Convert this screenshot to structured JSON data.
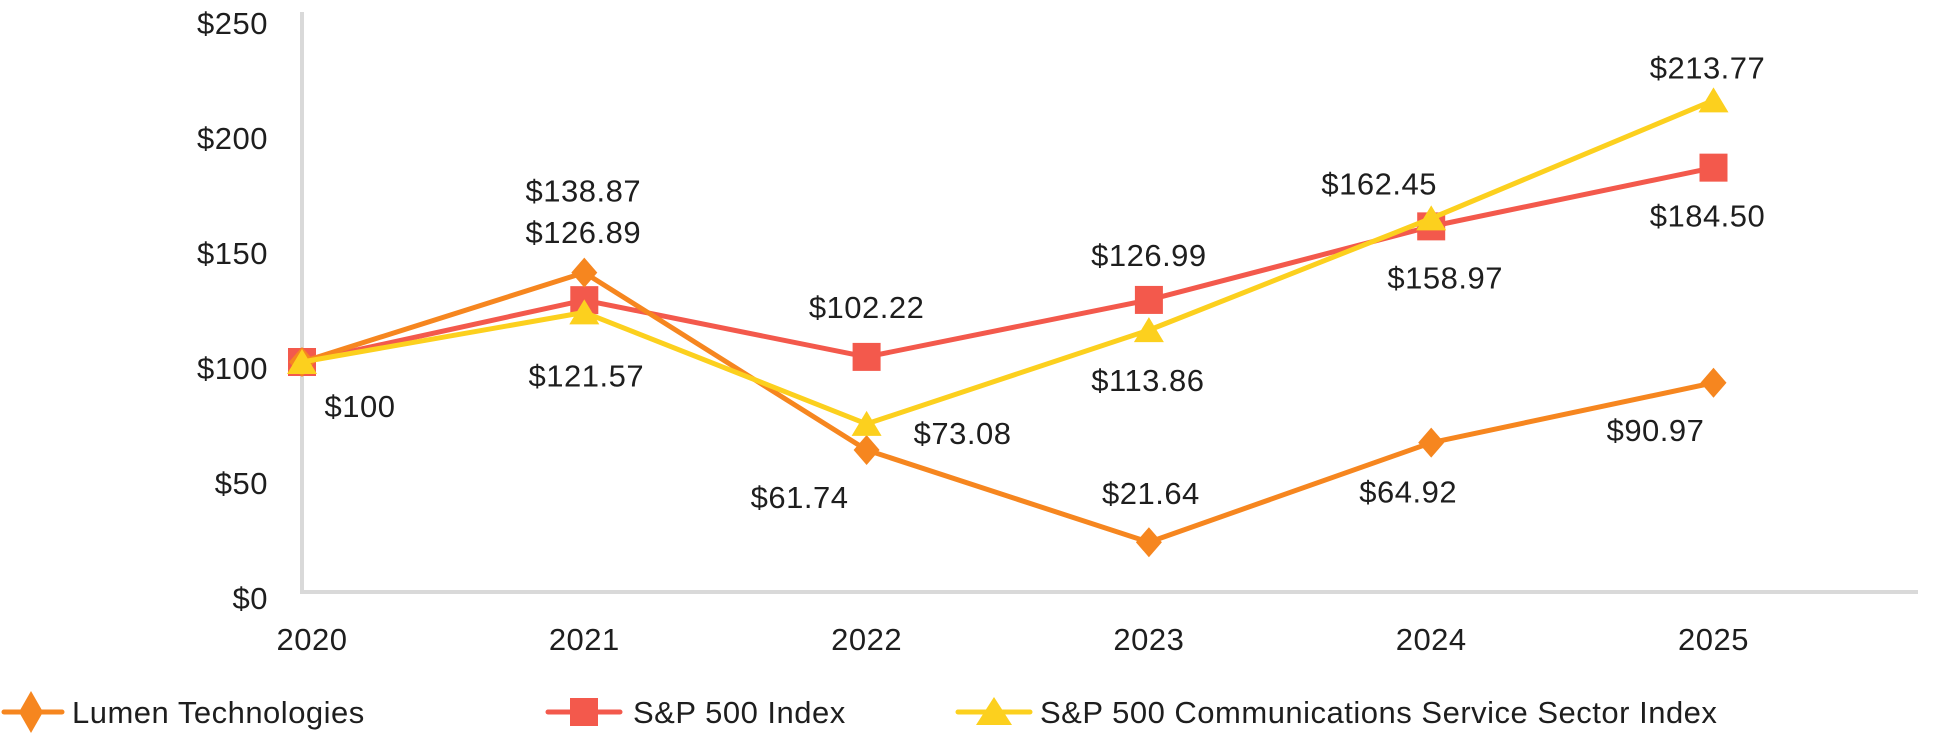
{
  "page": {
    "background": "#ffffff",
    "text_color": "#1e1e1e",
    "axis_color": "#d9d9d9"
  },
  "chart_data": {
    "type": "line",
    "title": "",
    "xlabel": "",
    "ylabel": "",
    "grid": false,
    "legend_position": "bottom",
    "ylim": [
      0,
      250
    ],
    "x_labels": [
      "2020",
      "2021",
      "2022",
      "2023",
      "2024",
      "2025"
    ],
    "y_tick_labels": [
      "$250",
      "$200",
      "$150",
      "$100",
      "$50",
      "$0"
    ],
    "y_tick_values": [
      250,
      200,
      150,
      100,
      50,
      0
    ],
    "series": [
      {
        "name": "Lumen Technologies",
        "marker": "diamond",
        "color": "#F6861F",
        "values": [
          100,
          138.87,
          61.74,
          21.64,
          64.92,
          90.97
        ],
        "point_labels": [
          "$100",
          "$138.87",
          "$61.74",
          "$21.64",
          "$64.92",
          "$90.97"
        ]
      },
      {
        "name": "S&P 500 Index",
        "marker": "square",
        "color": "#F3594C",
        "values": [
          100,
          126.89,
          102.22,
          126.99,
          158.97,
          184.5
        ],
        "point_labels": [
          "",
          "$126.89",
          "$102.22",
          "$126.99",
          "$158.97",
          "$184.50"
        ]
      },
      {
        "name": "S&P 500 Communications Service Sector Index",
        "marker": "triangle",
        "color": "#FCD01E",
        "values": [
          100,
          121.57,
          73.08,
          113.86,
          162.45,
          213.77
        ],
        "point_labels": [
          "",
          "$121.57",
          "$73.08",
          "$113.86",
          "$162.45",
          "$213.77"
        ]
      }
    ]
  }
}
